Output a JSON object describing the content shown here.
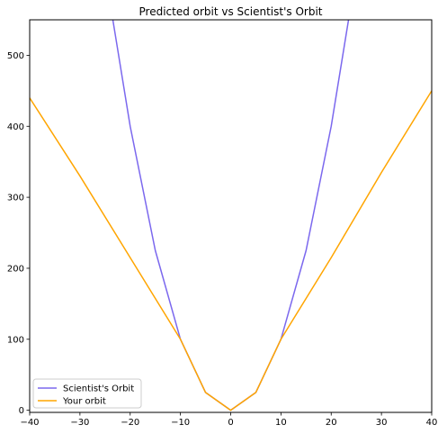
{
  "chart_data": {
    "type": "line",
    "title": "Predicted orbit vs Scientist's Orbit",
    "xlabel": "",
    "ylabel": "",
    "xlim": [
      -40,
      40
    ],
    "ylim": [
      -3,
      550
    ],
    "x_ticks": [
      -40,
      -30,
      -20,
      -10,
      0,
      10,
      20,
      30,
      40
    ],
    "y_ticks": [
      0,
      100,
      200,
      300,
      400,
      500
    ],
    "grid": false,
    "legend_position": "lower-left",
    "series": [
      {
        "name": "Scientist's Orbit",
        "color": "#7b68ee",
        "x": [
          -23.45,
          -20,
          -15,
          -10,
          -5,
          0,
          5,
          10,
          15,
          20,
          23.45
        ],
        "y": [
          550,
          400,
          225,
          100,
          25,
          0,
          25,
          100,
          225,
          400,
          550
        ]
      },
      {
        "name": "Your orbit",
        "color": "#ffa500",
        "x": [
          -40,
          -30,
          -20,
          -10,
          -5,
          0,
          5,
          10,
          20,
          30,
          40
        ],
        "y": [
          440,
          330,
          215,
          100,
          25,
          0,
          25,
          100,
          215,
          335,
          450
        ]
      }
    ]
  }
}
